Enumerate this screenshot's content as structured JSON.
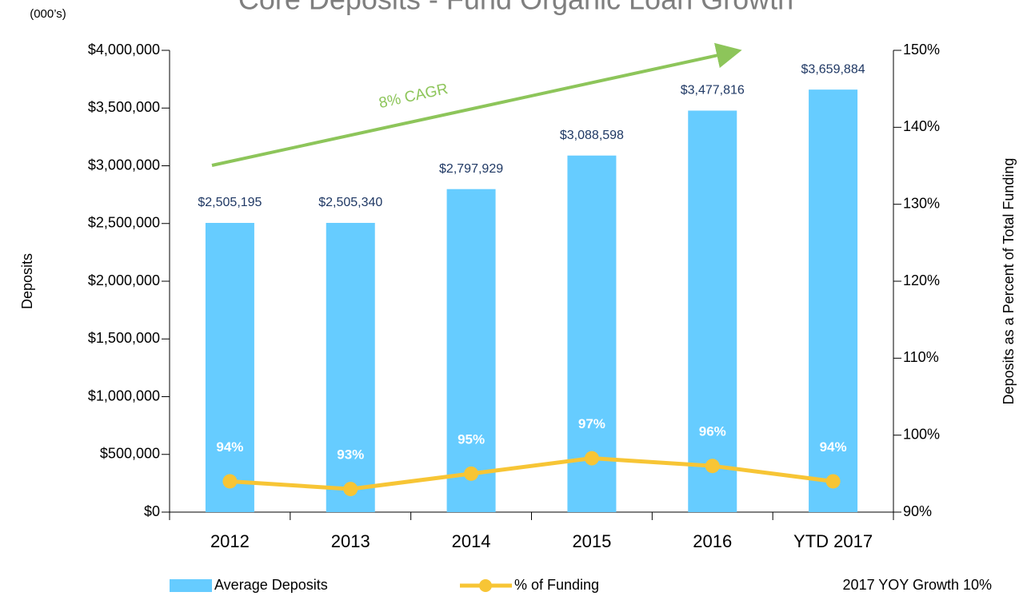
{
  "chart_data": {
    "type": "bar_line",
    "title": "Core Deposits - Fund Organic Loan Growth",
    "units_label": "(000’s)",
    "y_label": "Deposits",
    "y2_label": "Deposits as a Percent of Total Funding",
    "cagr_label": "8% CAGR",
    "footnote": "2017 YOY Growth 10%",
    "categories": [
      "2012",
      "2013",
      "2014",
      "2015",
      "2016",
      "YTD 2017"
    ],
    "series": [
      {
        "name": "Average Deposits",
        "type": "bar",
        "color": "#66ccff",
        "values": [
          2505195,
          2505340,
          2797929,
          3088598,
          3477816,
          3659884
        ],
        "value_labels": [
          "$2,505,195",
          "$2,505,340",
          "$2,797,929",
          "$3,088,598",
          "$3,477,816",
          "$3,659,884"
        ]
      },
      {
        "name": "% of Funding",
        "type": "line",
        "axis": "y2",
        "color": "#f7c535",
        "values": [
          94,
          93,
          95,
          97,
          96,
          94
        ],
        "value_labels": [
          "94%",
          "93%",
          "95%",
          "97%",
          "96%",
          "94%"
        ]
      }
    ],
    "ylim": [
      0,
      4000000
    ],
    "yticks": [
      {
        "value": 0,
        "label": "$0"
      },
      {
        "value": 500000,
        "label": "$500,000"
      },
      {
        "value": 1000000,
        "label": "$1,000,000"
      },
      {
        "value": 1500000,
        "label": "$1,500,000"
      },
      {
        "value": 2000000,
        "label": "$2,000,000"
      },
      {
        "value": 2500000,
        "label": "$2,500,000"
      },
      {
        "value": 3000000,
        "label": "$3,000,000"
      },
      {
        "value": 3500000,
        "label": "$3,500,000"
      },
      {
        "value": 4000000,
        "label": "$4,000,000"
      }
    ],
    "y2lim": [
      90,
      150
    ],
    "y2ticks": [
      {
        "value": 90,
        "label": "90%"
      },
      {
        "value": 100,
        "label": "100%"
      },
      {
        "value": 110,
        "label": "110%"
      },
      {
        "value": 120,
        "label": "120%"
      },
      {
        "value": 130,
        "label": "130%"
      },
      {
        "value": 140,
        "label": "140%"
      },
      {
        "value": 150,
        "label": "150%"
      }
    ],
    "grid": false
  }
}
